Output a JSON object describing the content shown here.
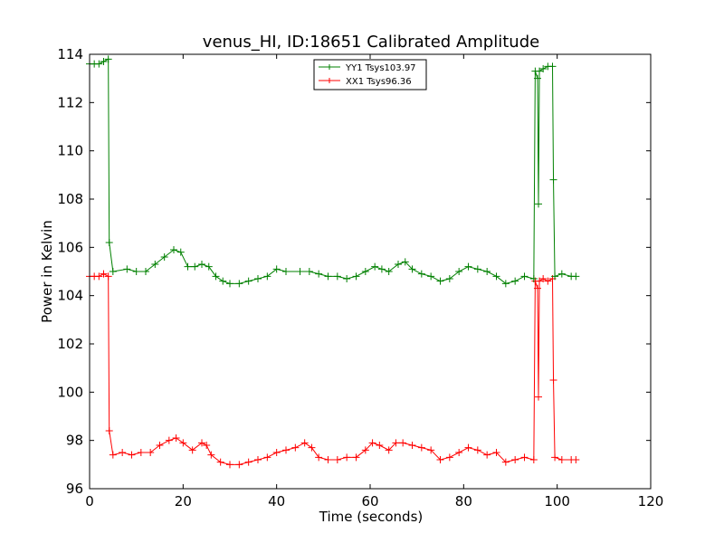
{
  "chart_data": {
    "type": "line",
    "title": "venus_HI, ID:18651 Calibrated Amplitude",
    "xlabel": "Time (seconds)",
    "ylabel": "Power in Kelvin",
    "xlim": [
      0,
      120
    ],
    "ylim": [
      96,
      114
    ],
    "xticks": [
      0,
      20,
      40,
      60,
      80,
      100,
      120
    ],
    "yticks": [
      96,
      98,
      100,
      102,
      104,
      106,
      108,
      110,
      112,
      114
    ],
    "grid": false,
    "legend_position": "upper-center",
    "marker": "+",
    "series": [
      {
        "name": "YY1 Tsys103.97",
        "color": "#008000",
        "points": [
          [
            0,
            113.6
          ],
          [
            1,
            113.6
          ],
          [
            2,
            113.6
          ],
          [
            3,
            113.7
          ],
          [
            4,
            113.8
          ],
          [
            4.2,
            106.2
          ],
          [
            5,
            105.0
          ],
          [
            8,
            105.1
          ],
          [
            10,
            105.0
          ],
          [
            12,
            105.0
          ],
          [
            14,
            105.3
          ],
          [
            16,
            105.6
          ],
          [
            18,
            105.9
          ],
          [
            19.5,
            105.8
          ],
          [
            21,
            105.2
          ],
          [
            22.5,
            105.2
          ],
          [
            24,
            105.3
          ],
          [
            25.5,
            105.2
          ],
          [
            27,
            104.8
          ],
          [
            28.5,
            104.6
          ],
          [
            30,
            104.5
          ],
          [
            32,
            104.5
          ],
          [
            34,
            104.6
          ],
          [
            36,
            104.7
          ],
          [
            38,
            104.8
          ],
          [
            40,
            105.1
          ],
          [
            42,
            105.0
          ],
          [
            45,
            105.0
          ],
          [
            47,
            105.0
          ],
          [
            49,
            104.9
          ],
          [
            51,
            104.8
          ],
          [
            53,
            104.8
          ],
          [
            55,
            104.7
          ],
          [
            57,
            104.8
          ],
          [
            59,
            105.0
          ],
          [
            61,
            105.2
          ],
          [
            62.5,
            105.1
          ],
          [
            64,
            105.0
          ],
          [
            66,
            105.3
          ],
          [
            67.5,
            105.4
          ],
          [
            69,
            105.1
          ],
          [
            71,
            104.9
          ],
          [
            73,
            104.8
          ],
          [
            75,
            104.6
          ],
          [
            77,
            104.7
          ],
          [
            79,
            105.0
          ],
          [
            81,
            105.2
          ],
          [
            83,
            105.1
          ],
          [
            85,
            105.0
          ],
          [
            87,
            104.8
          ],
          [
            89,
            104.5
          ],
          [
            91,
            104.6
          ],
          [
            93,
            104.8
          ],
          [
            95,
            104.7
          ],
          [
            95.3,
            113.3
          ],
          [
            95.8,
            113.0
          ],
          [
            96.0,
            107.8
          ],
          [
            96.2,
            113.3
          ],
          [
            97,
            113.4
          ],
          [
            98,
            113.5
          ],
          [
            99,
            113.5
          ],
          [
            99.2,
            108.8
          ],
          [
            99.5,
            104.8
          ],
          [
            101,
            104.9
          ],
          [
            103,
            104.8
          ],
          [
            104,
            104.8
          ]
        ]
      },
      {
        "name": "XX1 Tsys96.36",
        "color": "#ff0000",
        "points": [
          [
            0,
            104.8
          ],
          [
            1,
            104.8
          ],
          [
            2,
            104.8
          ],
          [
            3,
            104.9
          ],
          [
            4,
            104.8
          ],
          [
            4.2,
            98.4
          ],
          [
            5,
            97.4
          ],
          [
            7,
            97.5
          ],
          [
            9,
            97.4
          ],
          [
            11,
            97.5
          ],
          [
            13,
            97.5
          ],
          [
            15,
            97.8
          ],
          [
            17,
            98.0
          ],
          [
            18.5,
            98.1
          ],
          [
            20,
            97.9
          ],
          [
            22,
            97.6
          ],
          [
            24,
            97.9
          ],
          [
            25,
            97.8
          ],
          [
            26,
            97.4
          ],
          [
            28,
            97.1
          ],
          [
            30,
            97.0
          ],
          [
            32,
            97.0
          ],
          [
            34,
            97.1
          ],
          [
            36,
            97.2
          ],
          [
            38,
            97.3
          ],
          [
            40,
            97.5
          ],
          [
            42,
            97.6
          ],
          [
            44,
            97.7
          ],
          [
            46,
            97.9
          ],
          [
            47.5,
            97.7
          ],
          [
            49,
            97.3
          ],
          [
            51,
            97.2
          ],
          [
            53,
            97.2
          ],
          [
            55,
            97.3
          ],
          [
            57,
            97.3
          ],
          [
            59,
            97.6
          ],
          [
            60.5,
            97.9
          ],
          [
            62,
            97.8
          ],
          [
            64,
            97.6
          ],
          [
            65.5,
            97.9
          ],
          [
            67,
            97.9
          ],
          [
            69,
            97.8
          ],
          [
            71,
            97.7
          ],
          [
            73,
            97.6
          ],
          [
            75,
            97.2
          ],
          [
            77,
            97.3
          ],
          [
            79,
            97.5
          ],
          [
            81,
            97.7
          ],
          [
            83,
            97.6
          ],
          [
            85,
            97.4
          ],
          [
            87,
            97.5
          ],
          [
            89,
            97.1
          ],
          [
            91,
            97.2
          ],
          [
            93,
            97.3
          ],
          [
            95,
            97.2
          ],
          [
            95.3,
            104.6
          ],
          [
            95.8,
            104.3
          ],
          [
            96.0,
            99.8
          ],
          [
            96.2,
            104.6
          ],
          [
            97,
            104.7
          ],
          [
            98,
            104.6
          ],
          [
            99,
            104.7
          ],
          [
            99.2,
            100.5
          ],
          [
            99.5,
            97.3
          ],
          [
            101,
            97.2
          ],
          [
            103,
            97.2
          ],
          [
            104,
            97.2
          ]
        ]
      }
    ]
  }
}
